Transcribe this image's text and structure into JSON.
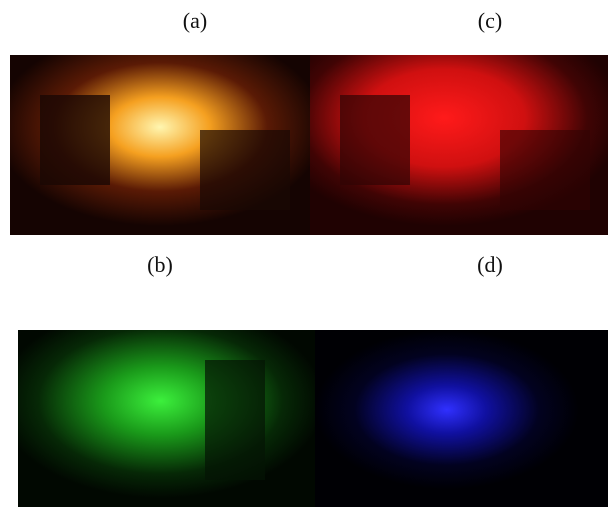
{
  "panels": [
    {
      "label": "(a)"
    },
    {
      "label": "(c)"
    },
    {
      "label": "(b)"
    },
    {
      "label": "(d)"
    }
  ]
}
